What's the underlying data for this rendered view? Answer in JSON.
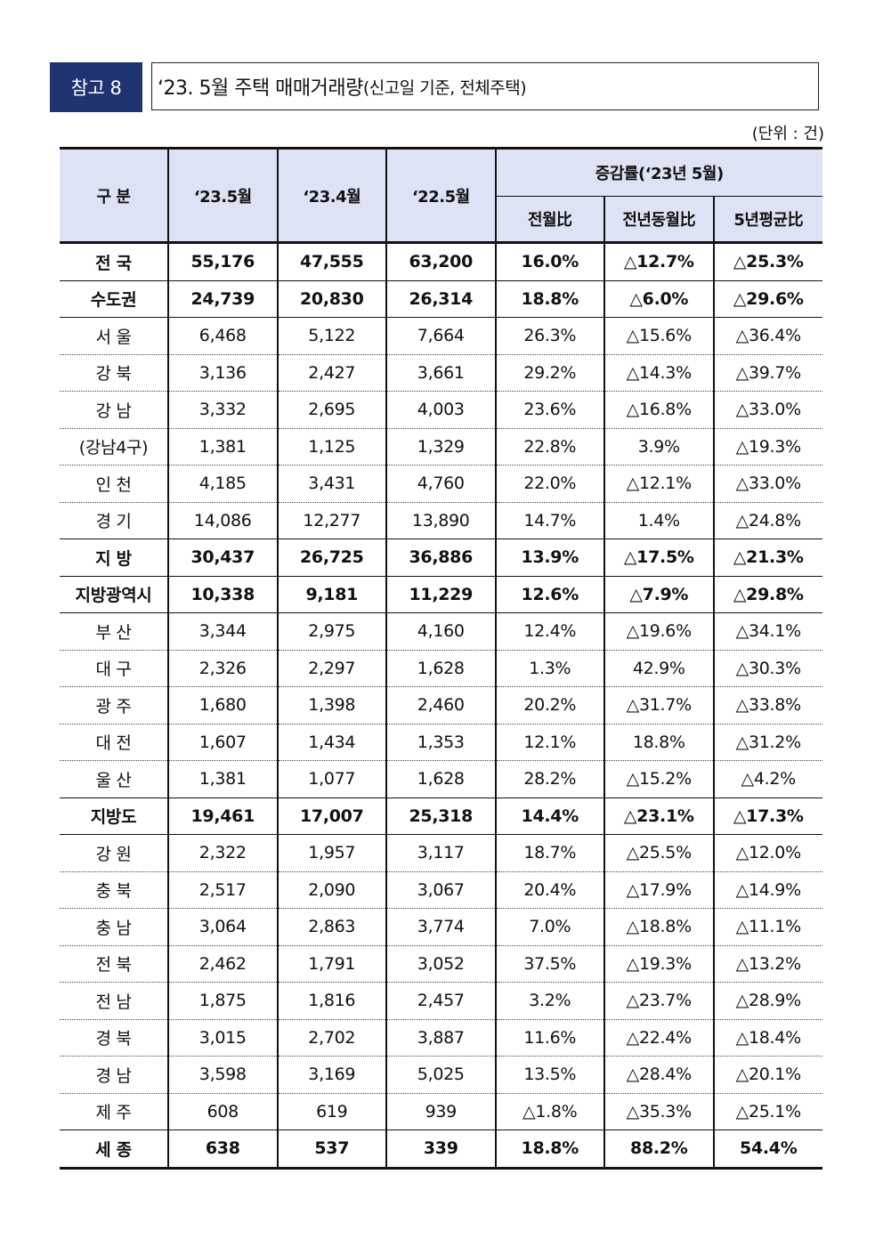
{
  "header": {
    "badge": "참고 8",
    "title_main": "‘23. 5월 주택 매매거래량",
    "title_sub": "(신고일 기준, 전체주택)",
    "unit": "(단위 : 건)"
  },
  "table": {
    "col_label": "구 분",
    "col_m1": "‘23.5월",
    "col_m2": "‘23.4월",
    "col_m3": "‘22.5월",
    "col_group": "증감률(‘23년 5월)",
    "col_mom": "전월比",
    "col_yoy": "전년동월比",
    "col_5y": "5년평균比",
    "rows": [
      {
        "label": "전 국",
        "v1": "55,176",
        "v2": "47,555",
        "v3": "63,200",
        "mom": "16.0%",
        "yoy": "△12.7%",
        "avg5": "△25.3%"
      },
      {
        "label": "수도권",
        "v1": "24,739",
        "v2": "20,830",
        "v3": "26,314",
        "mom": "18.8%",
        "yoy": "△6.0%",
        "avg5": "△29.6%"
      },
      {
        "label": "서 울",
        "v1": "6,468",
        "v2": "5,122",
        "v3": "7,664",
        "mom": "26.3%",
        "yoy": "△15.6%",
        "avg5": "△36.4%"
      },
      {
        "label": "강 북",
        "v1": "3,136",
        "v2": "2,427",
        "v3": "3,661",
        "mom": "29.2%",
        "yoy": "△14.3%",
        "avg5": "△39.7%"
      },
      {
        "label": "강 남",
        "v1": "3,332",
        "v2": "2,695",
        "v3": "4,003",
        "mom": "23.6%",
        "yoy": "△16.8%",
        "avg5": "△33.0%"
      },
      {
        "label": "(강남4구)",
        "v1": "1,381",
        "v2": "1,125",
        "v3": "1,329",
        "mom": "22.8%",
        "yoy": "3.9%",
        "avg5": "△19.3%"
      },
      {
        "label": "인 천",
        "v1": "4,185",
        "v2": "3,431",
        "v3": "4,760",
        "mom": "22.0%",
        "yoy": "△12.1%",
        "avg5": "△33.0%"
      },
      {
        "label": "경 기",
        "v1": "14,086",
        "v2": "12,277",
        "v3": "13,890",
        "mom": "14.7%",
        "yoy": "1.4%",
        "avg5": "△24.8%"
      },
      {
        "label": "지 방",
        "v1": "30,437",
        "v2": "26,725",
        "v3": "36,886",
        "mom": "13.9%",
        "yoy": "△17.5%",
        "avg5": "△21.3%"
      },
      {
        "label": "지방광역시",
        "v1": "10,338",
        "v2": "9,181",
        "v3": "11,229",
        "mom": "12.6%",
        "yoy": "△7.9%",
        "avg5": "△29.8%"
      },
      {
        "label": "부 산",
        "v1": "3,344",
        "v2": "2,975",
        "v3": "4,160",
        "mom": "12.4%",
        "yoy": "△19.6%",
        "avg5": "△34.1%"
      },
      {
        "label": "대 구",
        "v1": "2,326",
        "v2": "2,297",
        "v3": "1,628",
        "mom": "1.3%",
        "yoy": "42.9%",
        "avg5": "△30.3%"
      },
      {
        "label": "광 주",
        "v1": "1,680",
        "v2": "1,398",
        "v3": "2,460",
        "mom": "20.2%",
        "yoy": "△31.7%",
        "avg5": "△33.8%"
      },
      {
        "label": "대 전",
        "v1": "1,607",
        "v2": "1,434",
        "v3": "1,353",
        "mom": "12.1%",
        "yoy": "18.8%",
        "avg5": "△31.2%"
      },
      {
        "label": "울 산",
        "v1": "1,381",
        "v2": "1,077",
        "v3": "1,628",
        "mom": "28.2%",
        "yoy": "△15.2%",
        "avg5": "△4.2%"
      },
      {
        "label": "지방도",
        "v1": "19,461",
        "v2": "17,007",
        "v3": "25,318",
        "mom": "14.4%",
        "yoy": "△23.1%",
        "avg5": "△17.3%"
      },
      {
        "label": "강 원",
        "v1": "2,322",
        "v2": "1,957",
        "v3": "3,117",
        "mom": "18.7%",
        "yoy": "△25.5%",
        "avg5": "△12.0%"
      },
      {
        "label": "충 북",
        "v1": "2,517",
        "v2": "2,090",
        "v3": "3,067",
        "mom": "20.4%",
        "yoy": "△17.9%",
        "avg5": "△14.9%"
      },
      {
        "label": "충 남",
        "v1": "3,064",
        "v2": "2,863",
        "v3": "3,774",
        "mom": "7.0%",
        "yoy": "△18.8%",
        "avg5": "△11.1%"
      },
      {
        "label": "전 북",
        "v1": "2,462",
        "v2": "1,791",
        "v3": "3,052",
        "mom": "37.5%",
        "yoy": "△19.3%",
        "avg5": "△13.2%"
      },
      {
        "label": "전 남",
        "v1": "1,875",
        "v2": "1,816",
        "v3": "2,457",
        "mom": "3.2%",
        "yoy": "△23.7%",
        "avg5": "△28.9%"
      },
      {
        "label": "경 북",
        "v1": "3,015",
        "v2": "2,702",
        "v3": "3,887",
        "mom": "11.6%",
        "yoy": "△22.4%",
        "avg5": "△18.4%"
      },
      {
        "label": "경 남",
        "v1": "3,598",
        "v2": "3,169",
        "v3": "5,025",
        "mom": "13.5%",
        "yoy": "△28.4%",
        "avg5": "△20.1%"
      },
      {
        "label": "제 주",
        "v1": "608",
        "v2": "619",
        "v3": "939",
        "mom": "△1.8%",
        "yoy": "△35.3%",
        "avg5": "△25.1%"
      },
      {
        "label": "세 종",
        "v1": "638",
        "v2": "537",
        "v3": "339",
        "mom": "18.8%",
        "yoy": "88.2%",
        "avg5": "54.4%"
      }
    ]
  }
}
